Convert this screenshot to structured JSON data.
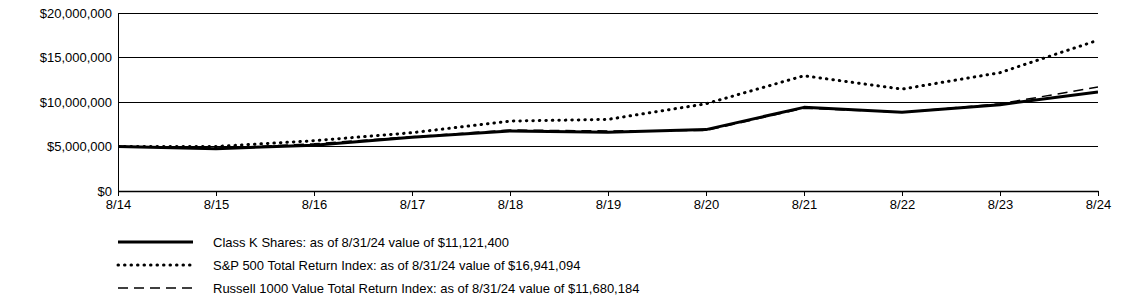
{
  "chart_data": {
    "type": "line",
    "categories": [
      "8/14",
      "8/15",
      "8/16",
      "8/17",
      "8/18",
      "8/19",
      "8/20",
      "8/21",
      "8/22",
      "8/23",
      "8/24"
    ],
    "series": [
      {
        "name": "Class K Shares: as of 8/31/24 value of $11,121,400",
        "color": "#000000",
        "line_style": "solid",
        "values": [
          5000000,
          4750000,
          5150000,
          6050000,
          6750000,
          6600000,
          6900000,
          9400000,
          8850000,
          9700000,
          11121400
        ]
      },
      {
        "name": "S&P 500 Total Return Index: as of 8/31/24 value of $16,941,094",
        "color": "#000000",
        "line_style": "dotted",
        "values": [
          5000000,
          5000000,
          5650000,
          6550000,
          7850000,
          8050000,
          9800000,
          12950000,
          11450000,
          13300000,
          16941094
        ]
      },
      {
        "name": "Russell 1000 Value Total Return Index: as of 8/31/24 value of $11,680,184",
        "color": "#000000",
        "line_style": "dashed",
        "values": [
          5000000,
          4800000,
          5300000,
          6100000,
          6850000,
          6750000,
          6800000,
          9300000,
          8850000,
          9800000,
          11680184
        ]
      }
    ],
    "ylim": [
      0,
      20000000
    ],
    "yticks": [
      {
        "value": 0,
        "label": "$0"
      },
      {
        "value": 5000000,
        "label": "$5,000,000"
      },
      {
        "value": 10000000,
        "label": "$10,000,000"
      },
      {
        "value": 15000000,
        "label": "$15,000,000"
      },
      {
        "value": 20000000,
        "label": "$20,000,000"
      }
    ],
    "grid": true,
    "legend": "bottom"
  }
}
